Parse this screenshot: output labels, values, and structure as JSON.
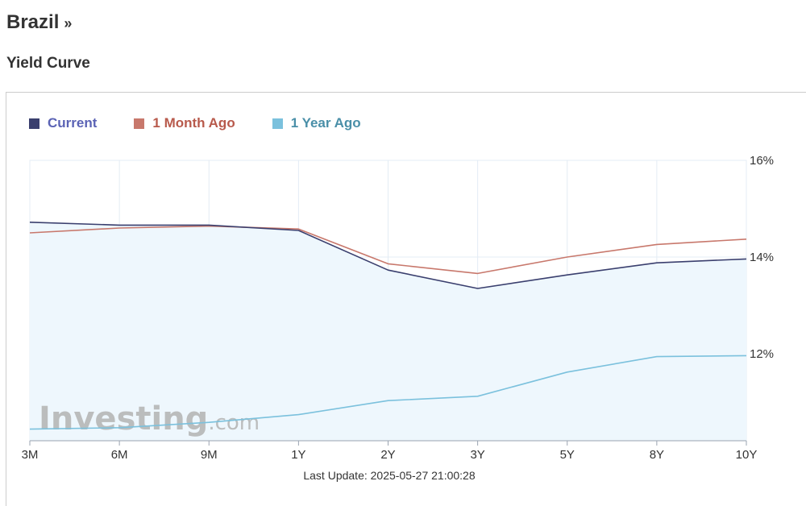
{
  "header": {
    "country": "Brazil",
    "chevron": "»",
    "section_title": "Yield Curve"
  },
  "watermark": {
    "brand": "Investing",
    "suffix": ".com"
  },
  "footer": {
    "last_update": "Last Update: 2025-05-27 21:00:28"
  },
  "chart_data": {
    "type": "line",
    "categories": [
      "3M",
      "6M",
      "9M",
      "1Y",
      "2Y",
      "3Y",
      "5Y",
      "8Y",
      "10Y"
    ],
    "y_tick_labels": [
      "12%",
      "14%",
      "16%"
    ],
    "y_ticks": [
      12,
      14,
      16
    ],
    "ylim": [
      10.2,
      16
    ],
    "y_axis_side": "right",
    "grid": true,
    "legend_position": "top-left",
    "series": [
      {
        "name": "Current",
        "color": "#3a3f6e",
        "label_color": "#5b63b5",
        "filled": true,
        "values": [
          14.72,
          14.66,
          14.66,
          14.55,
          13.73,
          13.35,
          13.63,
          13.88,
          13.96
        ]
      },
      {
        "name": "1 Month Ago",
        "color": "#c8786c",
        "label_color": "#b85a4c",
        "filled": false,
        "values": [
          14.5,
          14.6,
          14.64,
          14.58,
          13.86,
          13.66,
          14.0,
          14.26,
          14.37
        ]
      },
      {
        "name": "1 Year Ago",
        "color": "#7bc1dd",
        "label_color": "#4a8fa8",
        "filled": false,
        "values": [
          10.44,
          10.47,
          10.58,
          10.74,
          11.03,
          11.12,
          11.62,
          11.94,
          11.96
        ]
      }
    ]
  }
}
